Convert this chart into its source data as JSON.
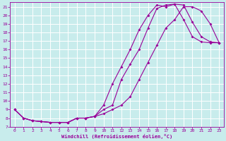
{
  "xlabel": "Windchill (Refroidissement éolien,°C)",
  "bg_color": "#c8ecec",
  "grid_color": "#ffffff",
  "line_color": "#990099",
  "xlim": [
    -0.5,
    23.5
  ],
  "ylim": [
    7,
    21.5
  ],
  "xticks": [
    0,
    1,
    2,
    3,
    4,
    5,
    6,
    7,
    8,
    9,
    10,
    11,
    12,
    13,
    14,
    15,
    16,
    17,
    18,
    19,
    20,
    21,
    22,
    23
  ],
  "yticks": [
    7,
    8,
    9,
    10,
    11,
    12,
    13,
    14,
    15,
    16,
    17,
    18,
    19,
    20,
    21
  ],
  "line1_x": [
    0,
    1,
    2,
    3,
    4,
    5,
    6,
    7,
    8,
    9,
    10,
    11,
    12,
    13,
    14,
    15,
    16,
    17,
    18,
    19,
    20,
    21,
    22,
    23
  ],
  "line1_y": [
    9.0,
    8.0,
    7.7,
    7.6,
    7.5,
    7.5,
    7.5,
    8.0,
    8.0,
    8.2,
    9.5,
    12.0,
    14.0,
    16.0,
    18.3,
    20.0,
    21.2,
    21.0,
    21.3,
    19.5,
    17.5,
    16.9,
    16.8,
    16.8
  ],
  "line2_x": [
    0,
    1,
    2,
    3,
    4,
    5,
    6,
    7,
    8,
    9,
    10,
    11,
    12,
    13,
    14,
    15,
    16,
    17,
    18,
    19,
    20,
    21,
    22,
    23
  ],
  "line2_y": [
    9.0,
    8.0,
    7.7,
    7.6,
    7.5,
    7.5,
    7.5,
    8.0,
    8.0,
    8.2,
    9.0,
    9.5,
    12.5,
    14.3,
    16.0,
    18.5,
    20.8,
    21.2,
    21.3,
    21.2,
    19.2,
    17.5,
    16.9,
    16.8
  ],
  "line3_x": [
    0,
    1,
    2,
    3,
    4,
    5,
    6,
    7,
    8,
    9,
    10,
    11,
    12,
    13,
    14,
    15,
    16,
    17,
    18,
    19,
    20,
    21,
    22,
    23
  ],
  "line3_y": [
    9.0,
    8.0,
    7.7,
    7.6,
    7.5,
    7.5,
    7.5,
    8.0,
    8.0,
    8.2,
    8.5,
    9.0,
    9.5,
    10.5,
    12.5,
    14.5,
    16.5,
    18.5,
    19.5,
    21.0,
    21.0,
    20.5,
    19.0,
    16.8
  ]
}
